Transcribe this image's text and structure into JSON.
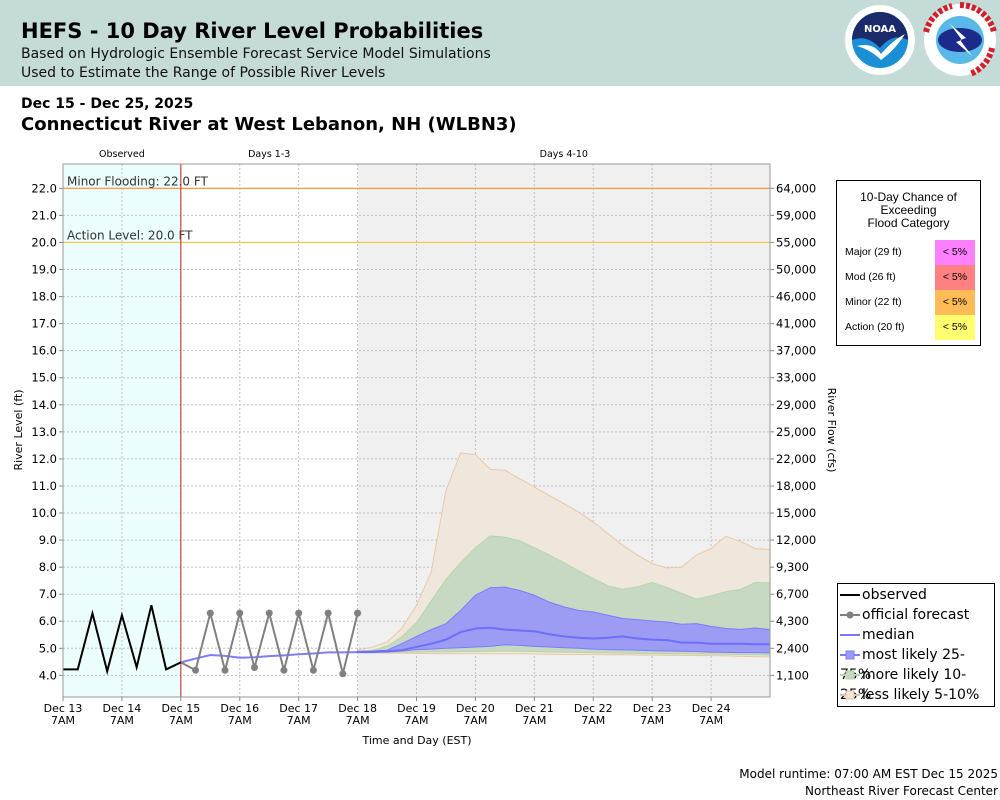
{
  "header": {
    "title": "HEFS - 10 Day River Level Probabilities",
    "subtitle1": "Based on Hydrologic Ensemble Forecast Service Model Simulations",
    "subtitle2": "Used to Estimate the Range of Possible River Levels",
    "logos": [
      "noaa-logo",
      "nws-logo"
    ],
    "logo_text": [
      "NOAA",
      "NATIONAL WEATHER SERVICE"
    ],
    "background": "#c4dbd8"
  },
  "date_range": "Dec 15 - Dec 25, 2025",
  "station": "Connecticut River at West Lebanon, NH (WLBN3)",
  "footer": {
    "runtime": "Model runtime: 07:00 AM EST Dec 15 2025",
    "center": "Northeast River Forecast Center"
  },
  "flood_box": {
    "title": [
      "10-Day Chance of",
      "Exceeding",
      "Flood Category"
    ],
    "rows": [
      {
        "label": "Major (29 ft)",
        "value": "< 5%",
        "color": "#ff80ff"
      },
      {
        "label": "Mod (26 ft)",
        "value": "< 5%",
        "color": "#ff8080"
      },
      {
        "label": "Minor (22 ft)",
        "value": "< 5%",
        "color": "#ffbb55"
      },
      {
        "label": "Action (20 ft)",
        "value": "< 5%",
        "color": "#ffff70"
      }
    ]
  },
  "chart_data": {
    "type": "area",
    "xlabel": "Time and Day (EST)",
    "ylabel": "River Level (ft)",
    "y2label": "River Flow (cfs)",
    "xlim": [
      "2025-12-13T07:00",
      "2025-12-25T07:00"
    ],
    "ylim": [
      3.2,
      22.9
    ],
    "grid": true,
    "legend_position": "bottom-right",
    "sections": [
      {
        "label": "Observed",
        "start": "2025-12-13T07:00",
        "end": "2025-12-15T07:00",
        "color": "#ebfdfd"
      },
      {
        "label": "Days 1-3",
        "start": "2025-12-15T07:00",
        "end": "2025-12-18T07:00",
        "color": "#ffffff"
      },
      {
        "label": "Days 4-10",
        "start": "2025-12-18T07:00",
        "end": "2025-12-25T07:00",
        "color": "#f0f0f0"
      }
    ],
    "x_ticks": [
      {
        "t": "2025-12-13T07:00",
        "label": [
          "Dec 13",
          "7AM"
        ]
      },
      {
        "t": "2025-12-14T07:00",
        "label": [
          "Dec 14",
          "7AM"
        ]
      },
      {
        "t": "2025-12-15T07:00",
        "label": [
          "Dec 15",
          "7AM"
        ]
      },
      {
        "t": "2025-12-16T07:00",
        "label": [
          "Dec 16",
          "7AM"
        ]
      },
      {
        "t": "2025-12-17T07:00",
        "label": [
          "Dec 17",
          "7AM"
        ]
      },
      {
        "t": "2025-12-18T07:00",
        "label": [
          "Dec 18",
          "7AM"
        ]
      },
      {
        "t": "2025-12-19T07:00",
        "label": [
          "Dec 19",
          "7AM"
        ]
      },
      {
        "t": "2025-12-20T07:00",
        "label": [
          "Dec 20",
          "7AM"
        ]
      },
      {
        "t": "2025-12-21T07:00",
        "label": [
          "Dec 21",
          "7AM"
        ]
      },
      {
        "t": "2025-12-22T07:00",
        "label": [
          "Dec 22",
          "7AM"
        ]
      },
      {
        "t": "2025-12-23T07:00",
        "label": [
          "Dec 23",
          "7AM"
        ]
      },
      {
        "t": "2025-12-24T07:00",
        "label": [
          "Dec 24",
          "7AM"
        ]
      }
    ],
    "y_ticks": [
      4.0,
      5.0,
      6.0,
      7.0,
      8.0,
      9.0,
      10.0,
      11.0,
      12.0,
      13.0,
      14.0,
      15.0,
      16.0,
      17.0,
      18.0,
      19.0,
      20.0,
      21.0,
      22.0
    ],
    "y2_ticks": [
      "1,100",
      "2,400",
      "4,300",
      "6,700",
      "9,300",
      "12,000",
      "15,000",
      "18,000",
      "22,000",
      "25,000",
      "29,000",
      "33,000",
      "37,000",
      "41,000",
      "46,000",
      "50,000",
      "55,000",
      "59,000",
      "64,000"
    ],
    "thresholds": [
      {
        "label": "Minor Flooding: 22.0 FT",
        "value": 22.0,
        "color": "#ff9933"
      },
      {
        "label": "Action Level: 20.0 FT",
        "value": 20.0,
        "color": "#f5c542"
      }
    ],
    "forecast_start_line": {
      "t": "2025-12-15T07:00",
      "color": "#cc2222"
    },
    "observed": {
      "name": "observed",
      "color": "#000000",
      "t": [
        "2025-12-13T07:00",
        "2025-12-13T13:00",
        "2025-12-13T19:00",
        "2025-12-14T01:00",
        "2025-12-14T07:00",
        "2025-12-14T13:00",
        "2025-12-14T19:00",
        "2025-12-15T01:00",
        "2025-12-15T07:00"
      ],
      "y": [
        4.22,
        4.22,
        6.29,
        4.15,
        6.22,
        4.3,
        6.59,
        4.22,
        4.48
      ]
    },
    "official_forecast": {
      "name": "official forecast",
      "color": "#808080",
      "t": [
        "2025-12-15T13:00",
        "2025-12-15T19:00",
        "2025-12-16T01:00",
        "2025-12-16T07:00",
        "2025-12-16T13:00",
        "2025-12-16T19:00",
        "2025-12-17T01:00",
        "2025-12-17T07:00",
        "2025-12-17T13:00",
        "2025-12-17T19:00",
        "2025-12-18T01:00",
        "2025-12-18T07:00"
      ],
      "y": [
        4.19,
        6.3,
        4.19,
        6.3,
        4.29,
        6.3,
        4.19,
        6.3,
        4.19,
        6.3,
        4.06,
        6.3
      ]
    },
    "median_early": {
      "t": [
        "2025-12-15T07:00",
        "2025-12-15T13:00",
        "2025-12-15T19:00",
        "2025-12-16T01:00",
        "2025-12-16T07:00",
        "2025-12-16T13:00",
        "2025-12-16T19:00",
        "2025-12-17T01:00",
        "2025-12-17T07:00",
        "2025-12-17T13:00",
        "2025-12-17T19:00",
        "2025-12-18T01:00"
      ],
      "y": [
        4.48,
        4.62,
        4.75,
        4.72,
        4.65,
        4.67,
        4.71,
        4.74,
        4.78,
        4.81,
        4.85,
        4.85
      ]
    },
    "ensemble": {
      "t_start": "2025-12-18T07:00",
      "t_step_hours": 6,
      "median": {
        "name": "median",
        "color": "#6666ff",
        "y": [
          4.86,
          4.86,
          4.89,
          4.93,
          5.05,
          5.17,
          5.32,
          5.6,
          5.73,
          5.76,
          5.69,
          5.66,
          5.63,
          5.52,
          5.44,
          5.39,
          5.36,
          5.39,
          5.44,
          5.36,
          5.32,
          5.3,
          5.21,
          5.21,
          5.17,
          5.17,
          5.17,
          5.15,
          5.15
        ]
      },
      "bands": [
        {
          "name": "less likely 5-10%",
          "fill": "#efe6dc",
          "stroke": "#e8c9a8",
          "lower": [
            4.84,
            4.83,
            4.82,
            4.82,
            4.81,
            4.81,
            4.8,
            4.8,
            4.8,
            4.8,
            4.8,
            4.8,
            4.79,
            4.78,
            4.77,
            4.77,
            4.77,
            4.76,
            4.76,
            4.75,
            4.75,
            4.74,
            4.74,
            4.73,
            4.73,
            4.72,
            4.7,
            4.69,
            4.68
          ],
          "upper": [
            4.93,
            5.05,
            5.23,
            5.74,
            6.59,
            7.82,
            10.84,
            12.22,
            12.16,
            11.62,
            11.58,
            11.27,
            10.96,
            10.65,
            10.35,
            10.04,
            9.67,
            9.24,
            8.81,
            8.44,
            8.13,
            7.97,
            8.0,
            8.44,
            8.69,
            9.14,
            8.95,
            8.69,
            8.65
          ]
        },
        {
          "name": "more likely 10-25%",
          "fill": "#c7d9c2",
          "stroke": "#b5d6a8",
          "lower": [
            4.85,
            4.85,
            4.85,
            4.86,
            4.86,
            4.87,
            4.87,
            4.88,
            4.88,
            4.89,
            4.9,
            4.89,
            4.88,
            4.87,
            4.86,
            4.85,
            4.84,
            4.83,
            4.82,
            4.81,
            4.81,
            4.8,
            4.8,
            4.79,
            4.79,
            4.78,
            4.77,
            4.76,
            4.75
          ],
          "upper": [
            4.87,
            4.92,
            5.08,
            5.42,
            5.95,
            6.75,
            7.55,
            8.17,
            8.72,
            9.15,
            9.11,
            8.97,
            8.72,
            8.45,
            8.17,
            7.86,
            7.58,
            7.31,
            7.18,
            7.27,
            7.43,
            7.25,
            7.03,
            6.82,
            6.94,
            7.09,
            7.18,
            7.43,
            7.42
          ]
        },
        {
          "name": "most likely 25-75%",
          "fill": "#9c9cf5",
          "stroke": "#7b7bff",
          "lower": [
            4.86,
            4.86,
            4.86,
            4.9,
            4.95,
            4.97,
            5.0,
            5.02,
            5.05,
            5.07,
            5.13,
            5.11,
            5.07,
            5.05,
            5.02,
            5.0,
            4.97,
            4.95,
            4.94,
            4.93,
            4.91,
            4.9,
            4.89,
            4.88,
            4.86,
            4.85,
            4.84,
            4.84,
            4.83
          ],
          "upper": [
            4.89,
            4.9,
            4.93,
            5.17,
            5.44,
            5.69,
            5.91,
            6.4,
            6.96,
            7.24,
            7.26,
            7.14,
            6.96,
            6.71,
            6.53,
            6.4,
            6.34,
            6.22,
            6.1,
            6.06,
            6.01,
            5.97,
            5.89,
            5.91,
            5.81,
            5.73,
            5.7,
            5.75,
            5.69
          ]
        }
      ]
    },
    "legend": [
      {
        "label": "observed",
        "kind": "line",
        "color": "#000000"
      },
      {
        "label": "official forecast",
        "kind": "line-dot",
        "color": "#808080"
      },
      {
        "label": "median",
        "kind": "line",
        "color": "#7777ff"
      },
      {
        "label": "most likely 25-75%",
        "kind": "square",
        "color": "#7b7bff",
        "fill": "#9c9cf5"
      },
      {
        "label": "more likely 10-25%",
        "kind": "square",
        "color": "#b5d6a8",
        "fill": "#c7d9c2"
      },
      {
        "label": "less likely 5-10%",
        "kind": "square",
        "color": "#e0c3a5",
        "fill": "#efe6dc"
      }
    ]
  }
}
